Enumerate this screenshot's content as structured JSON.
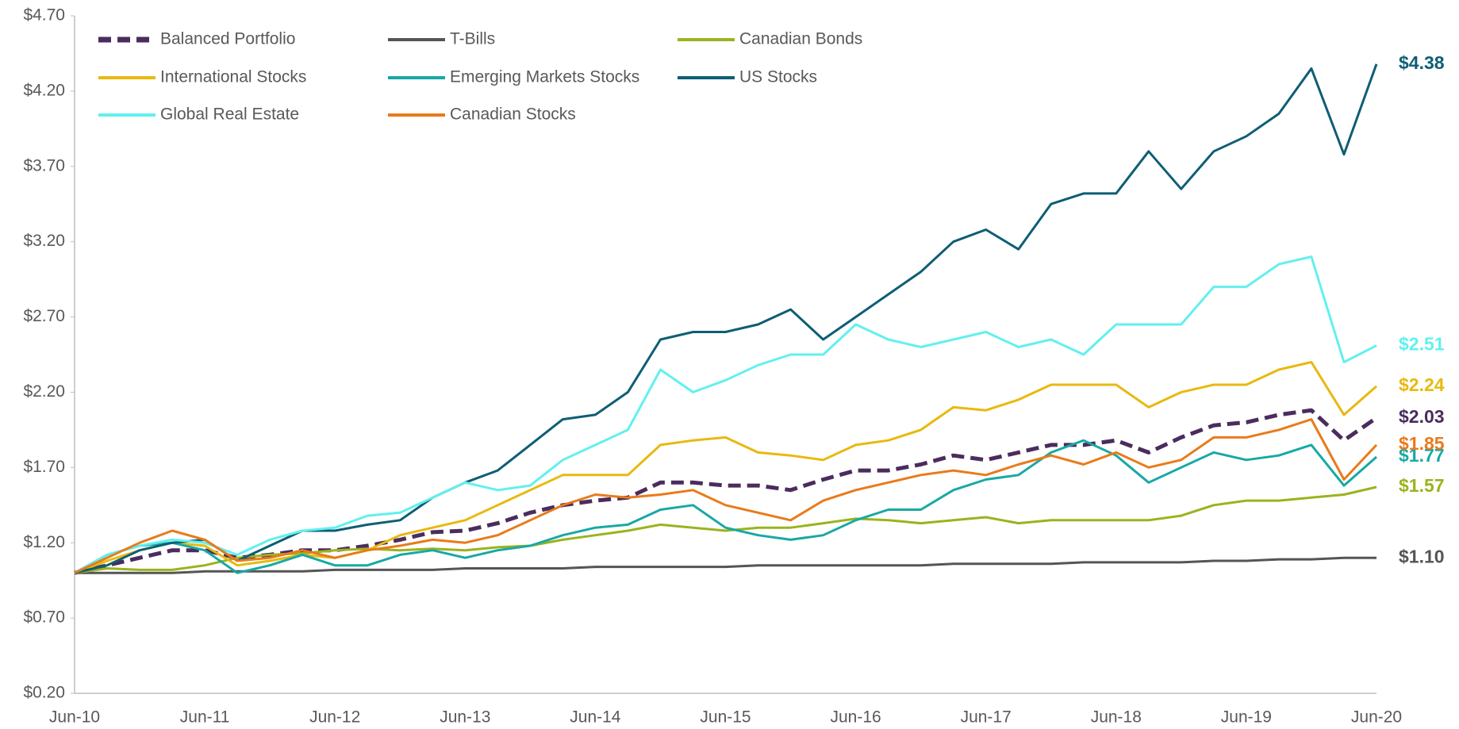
{
  "chart_data": {
    "type": "line",
    "categories": [
      "Jun-10",
      null,
      null,
      null,
      "Jun-11",
      null,
      null,
      null,
      "Jun-12",
      null,
      null,
      null,
      "Jun-13",
      null,
      null,
      null,
      "Jun-14",
      null,
      null,
      null,
      "Jun-15",
      null,
      null,
      null,
      "Jun-16",
      null,
      null,
      null,
      "Jun-17",
      null,
      null,
      null,
      "Jun-18",
      null,
      null,
      null,
      "Jun-19",
      null,
      null,
      null,
      "Jun-20"
    ],
    "ylim": [
      0.2,
      4.7
    ],
    "yticks": [
      {
        "value": 0.2,
        "label": "$0.20"
      },
      {
        "value": 0.7,
        "label": "$0.70"
      },
      {
        "value": 1.2,
        "label": "$1.20"
      },
      {
        "value": 1.7,
        "label": "$1.70"
      },
      {
        "value": 2.2,
        "label": "$2.20"
      },
      {
        "value": 2.7,
        "label": "$2.70"
      },
      {
        "value": 3.2,
        "label": "$3.20"
      },
      {
        "value": 3.7,
        "label": "$3.70"
      },
      {
        "value": 4.2,
        "label": "$4.20"
      },
      {
        "value": 4.7,
        "label": "$4.70"
      }
    ],
    "grid": false,
    "legend": "top-left",
    "series": [
      {
        "name": "Balanced Portfolio",
        "color": "#4b2c5e",
        "dashed": true,
        "values": [
          1.0,
          1.05,
          1.1,
          1.15,
          1.15,
          1.1,
          1.12,
          1.15,
          1.15,
          1.18,
          1.22,
          1.27,
          1.28,
          1.33,
          1.4,
          1.45,
          1.48,
          1.5,
          1.6,
          1.6,
          1.58,
          1.58,
          1.55,
          1.62,
          1.68,
          1.68,
          1.72,
          1.78,
          1.75,
          1.8,
          1.85,
          1.85,
          1.88,
          1.8,
          1.9,
          1.98,
          2.0,
          2.05,
          2.08,
          1.88,
          2.03
        ],
        "value_labels": [
          null,
          null,
          null,
          null,
          null,
          null,
          null,
          null,
          null,
          null,
          null,
          null,
          null,
          null,
          null,
          null,
          null,
          null,
          null,
          null,
          null,
          null,
          null,
          null,
          null,
          null,
          null,
          null,
          null,
          null,
          null,
          null,
          null,
          null,
          null,
          null,
          null,
          null,
          null,
          null,
          "$2.03"
        ]
      },
      {
        "name": "T-Bills",
        "color": "#555555",
        "values": [
          1.0,
          1.0,
          1.0,
          1.0,
          1.01,
          1.01,
          1.01,
          1.01,
          1.02,
          1.02,
          1.02,
          1.02,
          1.03,
          1.03,
          1.03,
          1.03,
          1.04,
          1.04,
          1.04,
          1.04,
          1.04,
          1.05,
          1.05,
          1.05,
          1.05,
          1.05,
          1.05,
          1.06,
          1.06,
          1.06,
          1.06,
          1.07,
          1.07,
          1.07,
          1.07,
          1.08,
          1.08,
          1.09,
          1.09,
          1.1,
          1.1
        ],
        "value_labels": [
          null,
          null,
          null,
          null,
          null,
          null,
          null,
          null,
          null,
          null,
          null,
          null,
          null,
          null,
          null,
          null,
          null,
          null,
          null,
          null,
          null,
          null,
          null,
          null,
          null,
          null,
          null,
          null,
          null,
          null,
          null,
          null,
          null,
          null,
          null,
          null,
          null,
          null,
          null,
          null,
          "$1.10"
        ]
      },
      {
        "name": "Canadian Bonds",
        "color": "#9bb31e",
        "values": [
          1.0,
          1.03,
          1.02,
          1.02,
          1.05,
          1.1,
          1.12,
          1.13,
          1.15,
          1.16,
          1.15,
          1.16,
          1.15,
          1.17,
          1.18,
          1.22,
          1.25,
          1.28,
          1.32,
          1.3,
          1.28,
          1.3,
          1.3,
          1.33,
          1.36,
          1.35,
          1.33,
          1.35,
          1.37,
          1.33,
          1.35,
          1.35,
          1.35,
          1.35,
          1.38,
          1.45,
          1.48,
          1.48,
          1.5,
          1.52,
          1.57
        ],
        "value_labels": [
          null,
          null,
          null,
          null,
          null,
          null,
          null,
          null,
          null,
          null,
          null,
          null,
          null,
          null,
          null,
          null,
          null,
          null,
          null,
          null,
          null,
          null,
          null,
          null,
          null,
          null,
          null,
          null,
          null,
          null,
          null,
          null,
          null,
          null,
          null,
          null,
          null,
          null,
          null,
          null,
          "$1.57"
        ]
      },
      {
        "name": "International Stocks",
        "color": "#e8b90f",
        "values": [
          1.0,
          1.08,
          1.15,
          1.2,
          1.18,
          1.05,
          1.08,
          1.12,
          1.1,
          1.15,
          1.25,
          1.3,
          1.35,
          1.45,
          1.55,
          1.65,
          1.65,
          1.65,
          1.85,
          1.88,
          1.9,
          1.8,
          1.78,
          1.75,
          1.85,
          1.88,
          1.95,
          2.1,
          2.08,
          2.15,
          2.25,
          2.25,
          2.25,
          2.1,
          2.2,
          2.25,
          2.25,
          2.35,
          2.4,
          2.05,
          2.24
        ],
        "value_labels": [
          null,
          null,
          null,
          null,
          null,
          null,
          null,
          null,
          null,
          null,
          null,
          null,
          null,
          null,
          null,
          null,
          null,
          null,
          null,
          null,
          null,
          null,
          null,
          null,
          null,
          null,
          null,
          null,
          null,
          null,
          null,
          null,
          null,
          null,
          null,
          null,
          null,
          null,
          null,
          null,
          "$2.24"
        ]
      },
      {
        "name": "Emerging Markets Stocks",
        "color": "#17a9a5",
        "values": [
          1.0,
          1.12,
          1.18,
          1.2,
          1.15,
          1.0,
          1.05,
          1.12,
          1.05,
          1.05,
          1.12,
          1.15,
          1.1,
          1.15,
          1.18,
          1.25,
          1.3,
          1.32,
          1.42,
          1.45,
          1.3,
          1.25,
          1.22,
          1.25,
          1.35,
          1.42,
          1.42,
          1.55,
          1.62,
          1.65,
          1.8,
          1.88,
          1.78,
          1.6,
          1.7,
          1.8,
          1.75,
          1.78,
          1.85,
          1.58,
          1.77
        ],
        "value_labels": [
          null,
          null,
          null,
          null,
          null,
          null,
          null,
          null,
          null,
          null,
          null,
          null,
          null,
          null,
          null,
          null,
          null,
          null,
          null,
          null,
          null,
          null,
          null,
          null,
          null,
          null,
          null,
          null,
          null,
          null,
          null,
          null,
          null,
          null,
          null,
          null,
          null,
          null,
          null,
          null,
          "$1.77"
        ]
      },
      {
        "name": "US Stocks",
        "color": "#0e5e74",
        "values": [
          1.0,
          1.05,
          1.15,
          1.2,
          1.22,
          1.08,
          1.18,
          1.28,
          1.28,
          1.32,
          1.35,
          1.5,
          1.6,
          1.68,
          1.85,
          2.02,
          2.05,
          2.2,
          2.55,
          2.6,
          2.6,
          2.65,
          2.75,
          2.55,
          2.7,
          2.85,
          3.0,
          3.2,
          3.28,
          3.15,
          3.45,
          3.52,
          3.52,
          3.8,
          3.55,
          3.8,
          3.9,
          4.05,
          4.35,
          3.78,
          4.38
        ],
        "value_labels": [
          null,
          null,
          null,
          null,
          null,
          null,
          null,
          null,
          null,
          null,
          null,
          null,
          null,
          null,
          null,
          null,
          null,
          null,
          null,
          null,
          null,
          null,
          null,
          null,
          null,
          null,
          null,
          null,
          null,
          null,
          null,
          null,
          null,
          null,
          null,
          null,
          null,
          null,
          null,
          null,
          "$4.38"
        ]
      },
      {
        "name": "Global Real Estate",
        "color": "#62f0ef",
        "values": [
          1.0,
          1.12,
          1.18,
          1.22,
          1.2,
          1.12,
          1.22,
          1.28,
          1.3,
          1.38,
          1.4,
          1.5,
          1.6,
          1.55,
          1.58,
          1.75,
          1.85,
          1.95,
          2.35,
          2.2,
          2.28,
          2.38,
          2.45,
          2.45,
          2.65,
          2.55,
          2.5,
          2.55,
          2.6,
          2.5,
          2.55,
          2.45,
          2.65,
          2.65,
          2.65,
          2.9,
          2.9,
          3.05,
          3.1,
          2.4,
          2.51
        ],
        "value_labels": [
          null,
          null,
          null,
          null,
          null,
          null,
          null,
          null,
          null,
          null,
          null,
          null,
          null,
          null,
          null,
          null,
          null,
          null,
          null,
          null,
          null,
          null,
          null,
          null,
          null,
          null,
          null,
          null,
          null,
          null,
          null,
          null,
          null,
          null,
          null,
          null,
          null,
          null,
          null,
          null,
          "$2.51"
        ]
      },
      {
        "name": "Canadian Stocks",
        "color": "#e87b1a",
        "values": [
          1.0,
          1.1,
          1.2,
          1.28,
          1.22,
          1.08,
          1.1,
          1.15,
          1.1,
          1.15,
          1.18,
          1.22,
          1.2,
          1.25,
          1.35,
          1.45,
          1.52,
          1.5,
          1.52,
          1.55,
          1.45,
          1.4,
          1.35,
          1.48,
          1.55,
          1.6,
          1.65,
          1.68,
          1.65,
          1.72,
          1.78,
          1.72,
          1.8,
          1.7,
          1.75,
          1.9,
          1.9,
          1.95,
          2.02,
          1.62,
          1.85
        ],
        "value_labels": [
          null,
          null,
          null,
          null,
          null,
          null,
          null,
          null,
          null,
          null,
          null,
          null,
          null,
          null,
          null,
          null,
          null,
          null,
          null,
          null,
          null,
          null,
          null,
          null,
          null,
          null,
          null,
          null,
          null,
          null,
          null,
          null,
          null,
          null,
          null,
          null,
          null,
          null,
          null,
          null,
          "$1.85"
        ]
      }
    ]
  }
}
